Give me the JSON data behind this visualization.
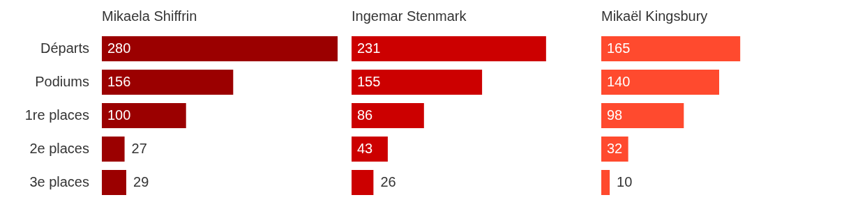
{
  "chart_data": [
    {
      "type": "bar",
      "orientation": "horizontal",
      "title": "Mikaela Shiffrin",
      "categories": [
        "Départs",
        "Podiums",
        "1re places",
        "2e places",
        "3e places"
      ],
      "values": [
        280,
        156,
        100,
        27,
        29
      ],
      "color": "#9b0000",
      "data_labels": true,
      "tick_labels": "y"
    },
    {
      "type": "bar",
      "orientation": "horizontal",
      "title": "Ingemar Stenmark",
      "categories": [
        null,
        null,
        null,
        null,
        null
      ],
      "values": [
        231,
        155,
        86,
        43,
        26
      ],
      "color": "#cc0000",
      "data_labels": true,
      "tick_labels": false
    },
    {
      "type": "bar",
      "orientation": "horizontal",
      "title": "Mikaël Kingsbury",
      "categories": [
        null,
        null,
        null,
        null,
        null
      ],
      "values": [
        165,
        140,
        98,
        32,
        10
      ],
      "color": "#ff4a2e",
      "data_labels": true,
      "tick_labels": false
    }
  ]
}
